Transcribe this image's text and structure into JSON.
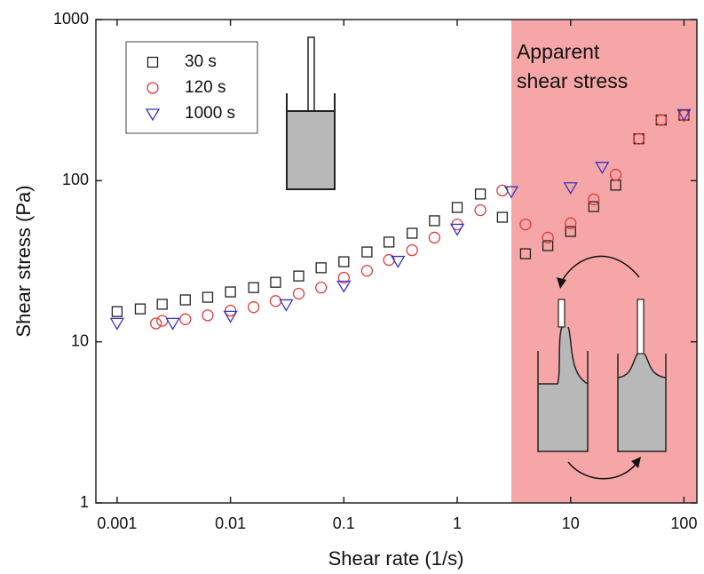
{
  "chart_data": {
    "type": "scatter",
    "x_label": "Shear rate (1/s)",
    "y_label": "Shear stress (Pa)",
    "xscale": "log",
    "yscale": "log",
    "xlim": [
      0.00065,
      130
    ],
    "ylim": [
      1,
      1000
    ],
    "xticks": [
      0.001,
      0.01,
      0.1,
      1,
      10,
      100
    ],
    "yticks": [
      1,
      10,
      100,
      1000
    ],
    "legend": "upper left",
    "shaded_region": {
      "x": [
        3,
        130
      ],
      "color": "#f6a6a6",
      "label": [
        "Apparent",
        "shear stress"
      ]
    },
    "series": [
      {
        "name": "30 s",
        "color": "#222222",
        "marker": "square",
        "x": [
          0.001,
          0.0016,
          0.0025,
          0.004,
          0.0063,
          0.01,
          0.016,
          0.025,
          0.04,
          0.063,
          0.1,
          0.16,
          0.25,
          0.4,
          0.63,
          1,
          1.6,
          2.5,
          4,
          6.3,
          10,
          16,
          25,
          40,
          63,
          100
        ],
        "values": [
          15.4,
          16.0,
          17.1,
          18.2,
          18.9,
          20.4,
          21.7,
          23.4,
          25.6,
          28.8,
          31.4,
          36.1,
          41.6,
          47.2,
          56.4,
          68.2,
          82.6,
          59.3,
          35.2,
          39.5,
          48.4,
          69,
          93.8,
          182,
          238,
          255
        ]
      },
      {
        "name": "120 s",
        "color": "#e03a3a",
        "marker": "circle",
        "x": [
          0.0022,
          0.0025,
          0.004,
          0.0063,
          0.01,
          0.016,
          0.025,
          0.04,
          0.063,
          0.1,
          0.16,
          0.25,
          0.4,
          0.63,
          1,
          1.6,
          2.5,
          4,
          6.3,
          10,
          16,
          25,
          40,
          63,
          100
        ],
        "values": [
          13.0,
          13.5,
          13.8,
          14.6,
          15.6,
          16.4,
          17.9,
          19.9,
          21.7,
          25,
          27.6,
          32.2,
          37,
          44.3,
          53.5,
          65.6,
          86.9,
          53.5,
          44.3,
          54.4,
          76.5,
          109,
          182,
          238,
          254
        ]
      },
      {
        "name": "1000 s",
        "color": "#3535c0",
        "marker": "triangle-down",
        "x": [
          0.001,
          0.0031,
          0.01,
          0.031,
          0.1,
          0.3,
          1,
          3,
          10,
          19,
          100
        ],
        "values": [
          13.1,
          13.1,
          14.5,
          17.1,
          22.3,
          31.8,
          50.3,
          86,
          91,
          122,
          259
        ]
      }
    ]
  }
}
